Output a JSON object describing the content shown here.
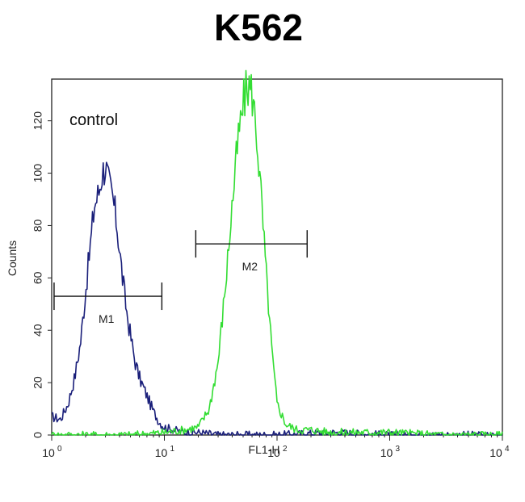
{
  "chart_data": {
    "type": "line",
    "title": "K562",
    "xlabel": "FL1-H",
    "ylabel": "Counts",
    "x_scale": "log",
    "xlim": [
      1,
      10000
    ],
    "ylim": [
      0,
      135
    ],
    "x_tick_bases": [
      "10",
      "10",
      "10",
      "10",
      "10"
    ],
    "x_tick_exponents": [
      "0",
      "1",
      "2",
      "3",
      "4"
    ],
    "x_tick_values": [
      1,
      10,
      100,
      1000,
      10000
    ],
    "y_ticks": [
      0,
      20,
      40,
      60,
      80,
      100,
      120
    ],
    "y_tick_labels": [
      "0",
      "20",
      "40",
      "60",
      "80",
      "100",
      "120"
    ],
    "annotation": "control",
    "grid": false,
    "series": [
      {
        "color": "#1a1f7a",
        "x": [
          1.0,
          1.2,
          1.4,
          1.6,
          1.8,
          2.0,
          2.2,
          2.4,
          2.6,
          2.8,
          3.0,
          3.2,
          3.5,
          3.8,
          4.2,
          4.6,
          5.0,
          5.5,
          6.0,
          7.0,
          8.0,
          9.0,
          10,
          12,
          15,
          20,
          30,
          50,
          100,
          300,
          1000,
          3000,
          10000
        ],
        "y": [
          7,
          6,
          12,
          22,
          35,
          55,
          72,
          88,
          92,
          100,
          103,
          96,
          90,
          80,
          62,
          48,
          38,
          28,
          22,
          15,
          9,
          5,
          3,
          2,
          1,
          1,
          0,
          0,
          0,
          1,
          0,
          0,
          0
        ]
      },
      {
        "color": "#33dd33",
        "x": [
          1,
          5,
          10,
          15,
          20,
          25,
          30,
          35,
          40,
          45,
          50,
          55,
          60,
          65,
          70,
          80,
          90,
          100,
          120,
          150,
          200,
          300,
          500,
          1000,
          3000,
          10000
        ],
        "y": [
          0,
          0,
          1,
          2,
          3,
          10,
          28,
          58,
          88,
          112,
          126,
          134,
          131,
          118,
          100,
          62,
          32,
          12,
          4,
          2,
          2,
          1,
          1,
          1,
          0,
          0
        ]
      }
    ],
    "markers": [
      {
        "label": "M1",
        "range": [
          1.05,
          9.5
        ],
        "y": 53
      },
      {
        "label": "M2",
        "range": [
          19,
          185
        ],
        "y": 73
      }
    ]
  }
}
